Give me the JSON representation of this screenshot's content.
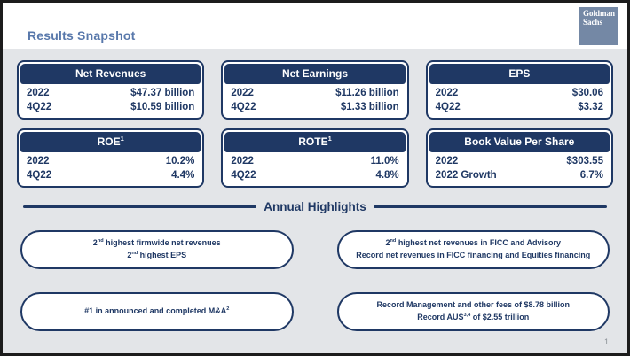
{
  "slide": {
    "title": "Results Snapshot",
    "page_number": "1",
    "logo": {
      "line1": "Goldman",
      "line2": "Sachs"
    }
  },
  "metrics": [
    {
      "title": "Net Revenues",
      "rows": [
        {
          "label": "2022",
          "value": "$47.37 billion"
        },
        {
          "label": "4Q22",
          "value": "$10.59 billion"
        }
      ]
    },
    {
      "title": "Net Earnings",
      "rows": [
        {
          "label": "2022",
          "value": "$11.26 billion"
        },
        {
          "label": "4Q22",
          "value": "$1.33 billion"
        }
      ]
    },
    {
      "title": "EPS",
      "rows": [
        {
          "label": "2022",
          "value": "$30.06"
        },
        {
          "label": "4Q22",
          "value": "$3.32"
        }
      ]
    },
    {
      "title": "ROE[1]",
      "rows": [
        {
          "label": "2022",
          "value": "10.2%"
        },
        {
          "label": "4Q22",
          "value": "4.4%"
        }
      ]
    },
    {
      "title": "ROTE[1]",
      "rows": [
        {
          "label": "2022",
          "value": "11.0%"
        },
        {
          "label": "4Q22",
          "value": "4.8%"
        }
      ]
    },
    {
      "title": "Book Value Per Share",
      "rows": [
        {
          "label": "2022",
          "value": "$303.55"
        },
        {
          "label": "2022 Growth",
          "value": "6.7%"
        }
      ]
    }
  ],
  "highlights": {
    "title": "Annual Highlights",
    "pills": [
      {
        "lines": [
          "2[nd] highest firmwide net revenues",
          "2[nd] highest EPS"
        ]
      },
      {
        "lines": [
          "2[nd] highest net revenues in FICC and Advisory",
          "Record net revenues in FICC financing and Equities financing"
        ]
      },
      {
        "lines": [
          "#1 in announced and completed M&A[2]"
        ]
      },
      {
        "lines": [
          "Record Management and other fees of $8.78 billion",
          "Record AUS[3,4] of $2.55 trillion"
        ]
      }
    ]
  },
  "colors": {
    "navy": "#1f3864",
    "title_blue": "#5878ab",
    "logo_slate": "#7488a5",
    "background_gray": "#e3e5e8",
    "box_white": "#ffffff",
    "border_black": "#1c1c1c",
    "page_number_gray": "#8b9096"
  }
}
